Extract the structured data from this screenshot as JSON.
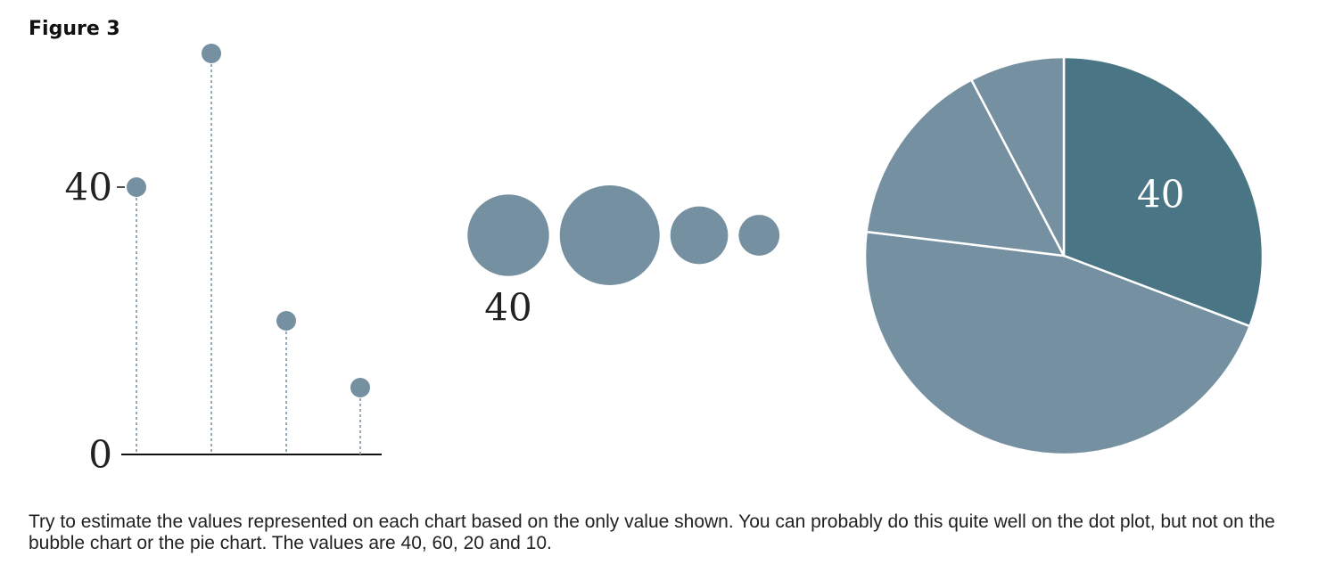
{
  "figure_label": "Figure 3",
  "caption": "Try to estimate the values represented on each chart based on the only value shown. You can probably do this quite well on the dot plot, but not on the bubble chart or the pie chart. The values are 40, 60, 20 and 10.",
  "colors": {
    "mark": "#7590a0",
    "pie_highlight": "#4a7585",
    "axis": "#111111",
    "stem": "#8aa2b0",
    "label_dark": "#222222",
    "label_light": "#ffffff"
  },
  "chart_data": [
    {
      "type": "scatter",
      "variant": "dot-plot",
      "values": [
        40,
        60,
        20,
        10
      ],
      "yticks": [
        {
          "value": 0,
          "label": "0"
        },
        {
          "value": 40,
          "label": "40"
        }
      ],
      "ylim": [
        0,
        60
      ],
      "grid": false
    },
    {
      "type": "scatter",
      "variant": "bubble",
      "values": [
        40,
        60,
        20,
        10
      ],
      "labelled_value": "40"
    },
    {
      "type": "pie",
      "values": [
        40,
        60,
        20,
        10
      ],
      "labelled_value": "40",
      "start": "12 o'clock",
      "direction": "clockwise"
    }
  ]
}
